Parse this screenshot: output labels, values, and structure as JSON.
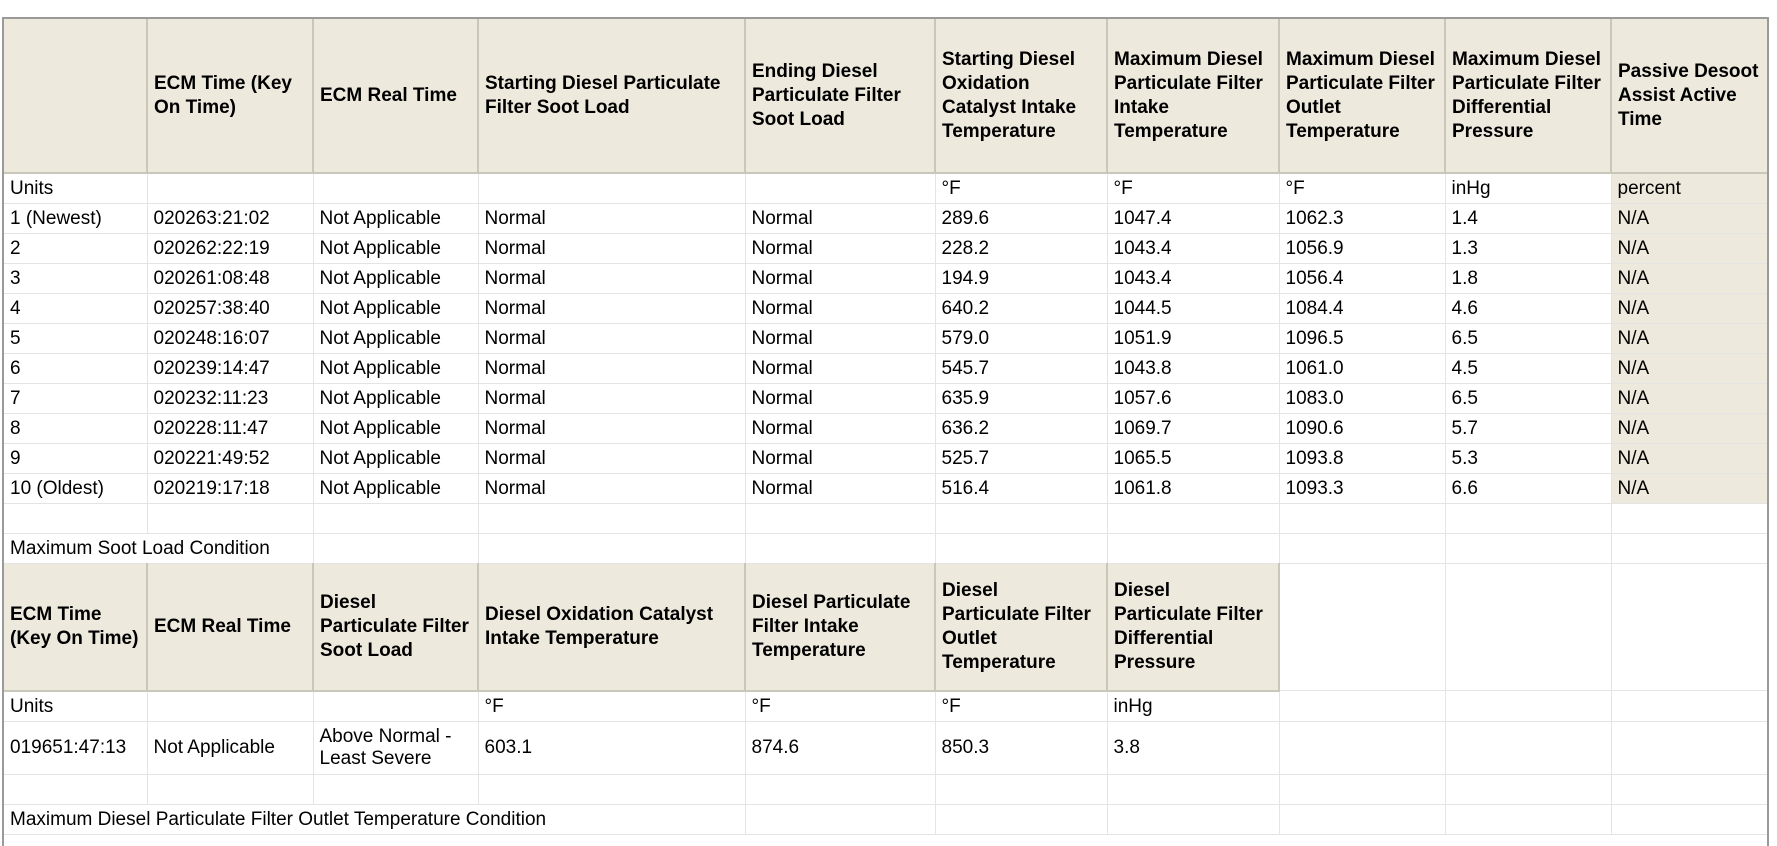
{
  "dpf_history": {
    "headers": [
      "",
      "ECM Time (Key On Time)",
      "ECM Real Time",
      "Starting Diesel Particulate Filter Soot Load",
      "Ending Diesel Particulate Filter Soot Load",
      "Starting Diesel Oxidation Catalyst Intake Temperature",
      "Maximum Diesel Particulate Filter Intake Temperature",
      "Maximum Diesel Particulate Filter Outlet Temperature",
      "Maximum Diesel Particulate Filter Differential Pressure",
      "Passive Desoot Assist Active Time"
    ],
    "units_row": [
      "Units",
      "",
      "",
      "",
      "",
      "°F",
      "°F",
      "°F",
      "inHg",
      "percent"
    ],
    "rows": [
      [
        "1 (Newest)",
        "020263:21:02",
        "Not Applicable",
        "Normal",
        "Normal",
        "289.6",
        "1047.4",
        "1062.3",
        "1.4",
        "N/A"
      ],
      [
        "2",
        "020262:22:19",
        "Not Applicable",
        "Normal",
        "Normal",
        "228.2",
        "1043.4",
        "1056.9",
        "1.3",
        "N/A"
      ],
      [
        "3",
        "020261:08:48",
        "Not Applicable",
        "Normal",
        "Normal",
        "194.9",
        "1043.4",
        "1056.4",
        "1.8",
        "N/A"
      ],
      [
        "4",
        "020257:38:40",
        "Not Applicable",
        "Normal",
        "Normal",
        "640.2",
        "1044.5",
        "1084.4",
        "4.6",
        "N/A"
      ],
      [
        "5",
        "020248:16:07",
        "Not Applicable",
        "Normal",
        "Normal",
        "579.0",
        "1051.9",
        "1096.5",
        "6.5",
        "N/A"
      ],
      [
        "6",
        "020239:14:47",
        "Not Applicable",
        "Normal",
        "Normal",
        "545.7",
        "1043.8",
        "1061.0",
        "4.5",
        "N/A"
      ],
      [
        "7",
        "020232:11:23",
        "Not Applicable",
        "Normal",
        "Normal",
        "635.9",
        "1057.6",
        "1083.0",
        "6.5",
        "N/A"
      ],
      [
        "8",
        "020228:11:47",
        "Not Applicable",
        "Normal",
        "Normal",
        "636.2",
        "1069.7",
        "1090.6",
        "5.7",
        "N/A"
      ],
      [
        "9",
        "020221:49:52",
        "Not Applicable",
        "Normal",
        "Normal",
        "525.7",
        "1065.5",
        "1093.8",
        "5.3",
        "N/A"
      ],
      [
        "10 (Oldest)",
        "020219:17:18",
        "Not Applicable",
        "Normal",
        "Normal",
        "516.4",
        "1061.8",
        "1093.3",
        "6.6",
        "N/A"
      ]
    ]
  },
  "max_soot_load": {
    "title": "Maximum Soot Load Condition",
    "headers": [
      "ECM Time (Key On Time)",
      "ECM Real Time",
      "Diesel Particulate Filter Soot Load",
      "Diesel Oxidation Catalyst Intake Temperature",
      "Diesel Particulate Filter Intake Temperature",
      "Diesel Particulate Filter Outlet Temperature",
      "Diesel Particulate Filter Differential Pressure"
    ],
    "units_row": [
      "Units",
      "",
      "",
      "°F",
      "°F",
      "°F",
      "inHg"
    ],
    "row": [
      "019651:47:13",
      "Not Applicable",
      "Above Normal - Least Severe",
      "603.1",
      "874.6",
      "850.3",
      "3.8"
    ]
  },
  "max_outlet_temp": {
    "title": "Maximum Diesel Particulate Filter Outlet Temperature Condition"
  }
}
